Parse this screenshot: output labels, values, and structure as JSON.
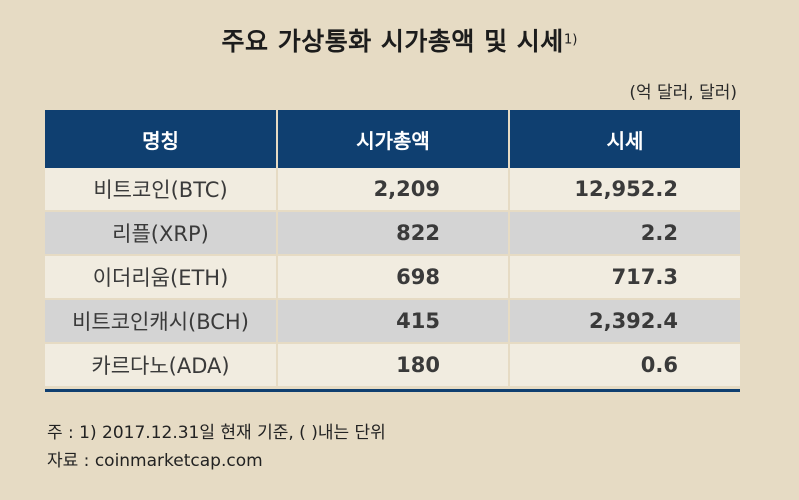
{
  "title": "주요 가상통화 시가총액 및 시세",
  "title_footnote": "1)",
  "unit": "(억 달러, 달러)",
  "columns": [
    "명칭",
    "시가총액",
    "시세"
  ],
  "rows": [
    {
      "name": "비트코인(BTC)",
      "market_cap": "2,209",
      "price": "12,952.2"
    },
    {
      "name": "리플(XRP)",
      "market_cap": "822",
      "price": "2.2"
    },
    {
      "name": "이더리움(ETH)",
      "market_cap": "698",
      "price": "717.3"
    },
    {
      "name": "비트코인캐시(BCH)",
      "market_cap": "415",
      "price": "2,392.4"
    },
    {
      "name": "카르다노(ADA)",
      "market_cap": "180",
      "price": "0.6"
    }
  ],
  "notes": [
    "주 : 1) 2017.12.31일 현재 기준, (   )내는 단위",
    "자료 : coinmarketcap.com"
  ],
  "colors": {
    "background": "#e6dbc4",
    "header": "#0f3f70",
    "row_light": "#f1ece0",
    "row_gray": "#d4d4d4"
  },
  "chart_data": {
    "type": "table",
    "title": "주요 가상통화 시가총액 및 시세",
    "unit": "(억 달러, 달러)",
    "columns": [
      "명칭",
      "시가총액",
      "시세"
    ],
    "rows": [
      [
        "비트코인(BTC)",
        2209,
        12952.2
      ],
      [
        "리플(XRP)",
        822,
        2.2
      ],
      [
        "이더리움(ETH)",
        698,
        717.3
      ],
      [
        "비트코인캐시(BCH)",
        415,
        2392.4
      ],
      [
        "카르다노(ADA)",
        180,
        0.6
      ]
    ]
  }
}
